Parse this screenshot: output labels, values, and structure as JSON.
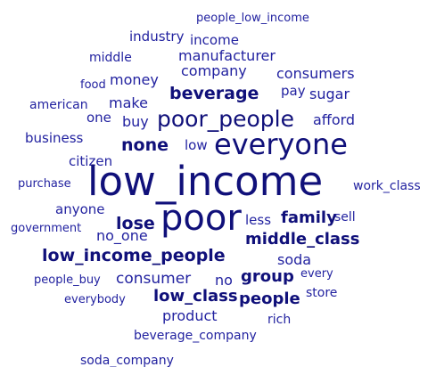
{
  "words": [
    "people_low_income",
    "industry",
    "income",
    "middle",
    "manufacturer",
    "company",
    "consumers",
    "food",
    "money",
    "beverage",
    "pay",
    "sugar",
    "american",
    "make",
    "one",
    "buy",
    "poor_people",
    "afford",
    "business",
    "none",
    "low",
    "everyone",
    "citizen",
    "purchase",
    "low_income",
    "work_class",
    "anyone",
    "government",
    "lose",
    "poor",
    "less",
    "family",
    "sell",
    "no_one",
    "middle_class",
    "low_income_people",
    "soda",
    "people_buy",
    "consumer",
    "no",
    "group",
    "every",
    "low_class",
    "people",
    "store",
    "everybody",
    "product",
    "rich",
    "beverage_company",
    "soda_company"
  ]
}
